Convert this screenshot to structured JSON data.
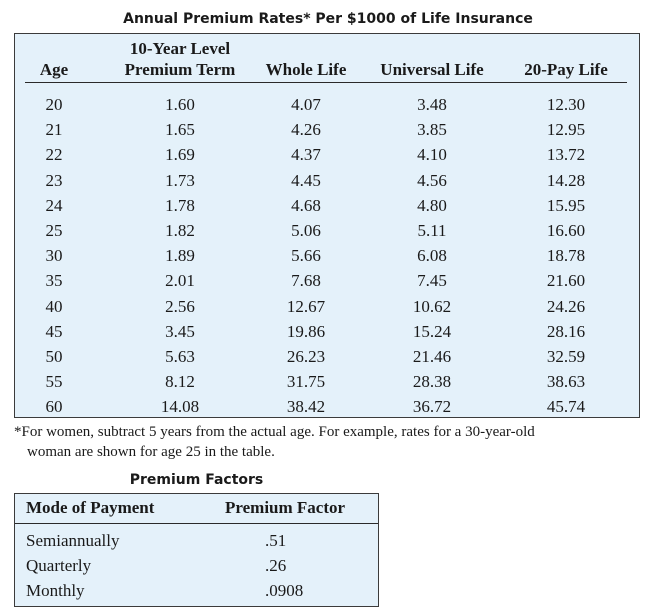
{
  "rates_table": {
    "title": "Annual Premium Rates* Per $1000 of Life Insurance",
    "headers": {
      "age": "Age",
      "term_line1": "10-Year Level",
      "term_line2": "Premium Term",
      "whole_life": "Whole Life",
      "universal_life": "Universal Life",
      "twenty_pay": "20-Pay Life"
    },
    "rows": [
      [
        "20",
        "1.60",
        "4.07",
        "3.48",
        "12.30"
      ],
      [
        "21",
        "1.65",
        "4.26",
        "3.85",
        "12.95"
      ],
      [
        "22",
        "1.69",
        "4.37",
        "4.10",
        "13.72"
      ],
      [
        "23",
        "1.73",
        "4.45",
        "4.56",
        "14.28"
      ],
      [
        "24",
        "1.78",
        "4.68",
        "4.80",
        "15.95"
      ],
      [
        "25",
        "1.82",
        "5.06",
        "5.11",
        "16.60"
      ],
      [
        "30",
        "1.89",
        "5.66",
        "6.08",
        "18.78"
      ],
      [
        "35",
        "2.01",
        "7.68",
        "7.45",
        "21.60"
      ],
      [
        "40",
        "2.56",
        "12.67",
        "10.62",
        "24.26"
      ],
      [
        "45",
        "3.45",
        "19.86",
        "15.24",
        "28.16"
      ],
      [
        "50",
        "5.63",
        "26.23",
        "21.46",
        "32.59"
      ],
      [
        "55",
        "8.12",
        "31.75",
        "28.38",
        "38.63"
      ],
      [
        "60",
        "14.08",
        "38.42",
        "36.72",
        "45.74"
      ]
    ],
    "footnote_line1": "*For women, subtract 5 years from the actual age. For example, rates for a 30-year-old",
    "footnote_line2": "woman are shown for age 25 in the table."
  },
  "premium_factors": {
    "title": "Premium Factors",
    "headers": {
      "mode": "Mode of Payment",
      "factor": "Premium Factor"
    },
    "rows": [
      {
        "mode": "Semiannually",
        "factor": ".51"
      },
      {
        "mode": "Quarterly",
        "factor": ".26"
      },
      {
        "mode": "Monthly",
        "factor": ".0908"
      }
    ]
  },
  "colors": {
    "table_background": "#e4f1fa",
    "border": "#3b3b3b"
  }
}
